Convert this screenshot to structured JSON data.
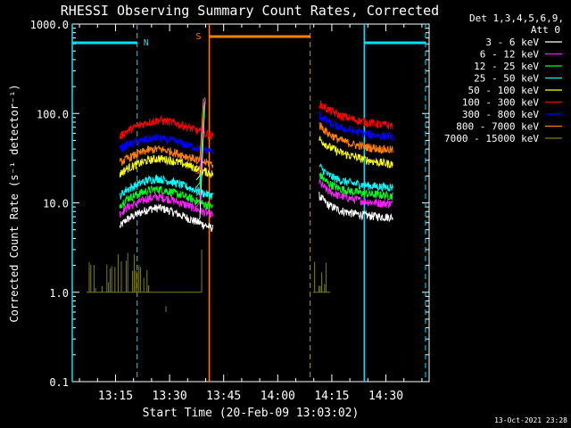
{
  "chart_data": {
    "type": "line",
    "title": "RHESSI Observing Summary Count Rates, Corrected",
    "xlabel": "Start Time (20-Feb-09 13:03:02)",
    "ylabel": "Corrected Count Rate (s⁻¹ detector⁻¹)",
    "y_scale": "log",
    "ylim": [
      0.1,
      1000.0
    ],
    "xlim": [
      "13:03",
      "14:42"
    ],
    "x_ticks": [
      "13:15",
      "13:30",
      "13:45",
      "14:00",
      "14:15",
      "14:30"
    ],
    "y_ticks": [
      "0.1",
      "1.0",
      "10.0",
      "100.0",
      "1000.0"
    ],
    "legend_header": [
      "Det 1,3,4,5,6,9,",
      "Att 0"
    ],
    "legend_position": "top-right",
    "footer_timestamp": "13-Oct-2021 23:28",
    "markers": {
      "night": {
        "label": "N",
        "color": "#00e0ff",
        "start_dashed": "13:21",
        "end": "14:24",
        "end_dashed": "14:41"
      },
      "saa": {
        "label": "S",
        "color": "#ff8000",
        "start": "13:41",
        "end_dashed": "14:09"
      }
    },
    "series": [
      {
        "name": "3 - 6 keV",
        "color": "#ffffff",
        "segA": [
          [
            13.2,
            5.4
          ],
          [
            15,
            6.5
          ],
          [
            18,
            7.5
          ],
          [
            21,
            8.5
          ],
          [
            24,
            8.8
          ],
          [
            27,
            8.2
          ],
          [
            30,
            7.3
          ],
          [
            33,
            6.5
          ],
          [
            36,
            5.8
          ],
          [
            39,
            5.2
          ]
        ],
        "segB": [
          [
            68.5,
            12
          ],
          [
            71,
            9.5
          ],
          [
            74,
            8.3
          ],
          [
            78,
            7.6
          ],
          [
            82,
            7.2
          ],
          [
            86,
            7.0
          ],
          [
            89,
            6.9
          ]
        ]
      },
      {
        "name": "6 - 12 keV",
        "color": "#ff20ff",
        "segA": [
          [
            13.2,
            7.6
          ],
          [
            15,
            8.8
          ],
          [
            18,
            10
          ],
          [
            21,
            11.3
          ],
          [
            24,
            11.6
          ],
          [
            27,
            11
          ],
          [
            30,
            10
          ],
          [
            33,
            9
          ],
          [
            36,
            8
          ],
          [
            39,
            7.3
          ]
        ],
        "segB": [
          [
            68.5,
            17
          ],
          [
            71,
            13.5
          ],
          [
            74,
            12
          ],
          [
            78,
            11
          ],
          [
            82,
            10.3
          ],
          [
            86,
            9.9
          ],
          [
            89,
            9.8
          ]
        ]
      },
      {
        "name": "12 - 25 keV",
        "color": "#00ff20",
        "segA": [
          [
            13.2,
            9.5
          ],
          [
            15,
            11
          ],
          [
            18,
            12.5
          ],
          [
            21,
            13.8
          ],
          [
            24,
            14.2
          ],
          [
            27,
            13.4
          ],
          [
            30,
            12.3
          ],
          [
            33,
            11.1
          ],
          [
            36,
            9.9
          ],
          [
            39,
            9
          ]
        ],
        "segB": [
          [
            68.5,
            21
          ],
          [
            71,
            16.5
          ],
          [
            74,
            14.5
          ],
          [
            78,
            13.3
          ],
          [
            82,
            12.6
          ],
          [
            86,
            12.2
          ],
          [
            89,
            12
          ]
        ]
      },
      {
        "name": "25 - 50 keV",
        "color": "#00ffff",
        "segA": [
          [
            13.2,
            12
          ],
          [
            15,
            14
          ],
          [
            18,
            16
          ],
          [
            21,
            18
          ],
          [
            24,
            18.7
          ],
          [
            27,
            17.5
          ],
          [
            30,
            16
          ],
          [
            33,
            14.5
          ],
          [
            36,
            13
          ],
          [
            39,
            12
          ]
        ],
        "segB": [
          [
            68.5,
            26
          ],
          [
            71,
            20.5
          ],
          [
            74,
            18
          ],
          [
            78,
            16.5
          ],
          [
            82,
            15.6
          ],
          [
            86,
            15.1
          ],
          [
            89,
            15
          ]
        ]
      },
      {
        "name": "50 - 100 keV",
        "color": "#ffff00",
        "segA": [
          [
            13.2,
            21
          ],
          [
            15,
            24
          ],
          [
            18,
            27
          ],
          [
            21,
            30
          ],
          [
            24,
            31.5
          ],
          [
            27,
            30
          ],
          [
            30,
            28
          ],
          [
            33,
            25.5
          ],
          [
            36,
            23
          ],
          [
            39,
            21
          ]
        ],
        "segB": [
          [
            68.5,
            52
          ],
          [
            71,
            43
          ],
          [
            74,
            37
          ],
          [
            78,
            33
          ],
          [
            82,
            30
          ],
          [
            86,
            28
          ],
          [
            89,
            27
          ]
        ]
      },
      {
        "name": "100 - 300 keV",
        "color": "#ff0000",
        "segA": [
          [
            13.2,
            55
          ],
          [
            15,
            63
          ],
          [
            18,
            72
          ],
          [
            21,
            80
          ],
          [
            24,
            84
          ],
          [
            27,
            81
          ],
          [
            30,
            75
          ],
          [
            33,
            68
          ],
          [
            36,
            61
          ],
          [
            39,
            56
          ]
        ],
        "segB": [
          [
            68.5,
            130
          ],
          [
            71,
            110
          ],
          [
            74,
            96
          ],
          [
            78,
            86
          ],
          [
            82,
            79
          ],
          [
            86,
            75
          ],
          [
            89,
            73
          ]
        ]
      },
      {
        "name": "300 - 800 keV",
        "color": "#0000ff",
        "segA": [
          [
            13.2,
            40
          ],
          [
            15,
            44
          ],
          [
            18,
            48
          ],
          [
            21,
            52
          ],
          [
            24,
            53
          ],
          [
            27,
            50
          ],
          [
            30,
            47
          ],
          [
            33,
            43
          ],
          [
            36,
            40
          ],
          [
            39,
            37
          ]
        ],
        "segB": [
          [
            68.5,
            95
          ],
          [
            71,
            80
          ],
          [
            74,
            70
          ],
          [
            78,
            63
          ],
          [
            82,
            59
          ],
          [
            86,
            56
          ],
          [
            89,
            55
          ]
        ]
      },
      {
        "name": "800 - 7000 keV",
        "color": "#ff8000",
        "segA": [
          [
            13.2,
            28
          ],
          [
            15,
            31
          ],
          [
            18,
            35
          ],
          [
            21,
            39
          ],
          [
            24,
            40
          ],
          [
            27,
            38
          ],
          [
            30,
            35
          ],
          [
            33,
            32
          ],
          [
            36,
            29
          ],
          [
            39,
            27
          ]
        ],
        "segB": [
          [
            68.5,
            75
          ],
          [
            71,
            60
          ],
          [
            74,
            51
          ],
          [
            78,
            45
          ],
          [
            82,
            42
          ],
          [
            86,
            40
          ],
          [
            89,
            39
          ]
        ]
      },
      {
        "name": "7000 - 15000 keV",
        "color": "#808000",
        "segA": [],
        "segB": []
      }
    ]
  }
}
